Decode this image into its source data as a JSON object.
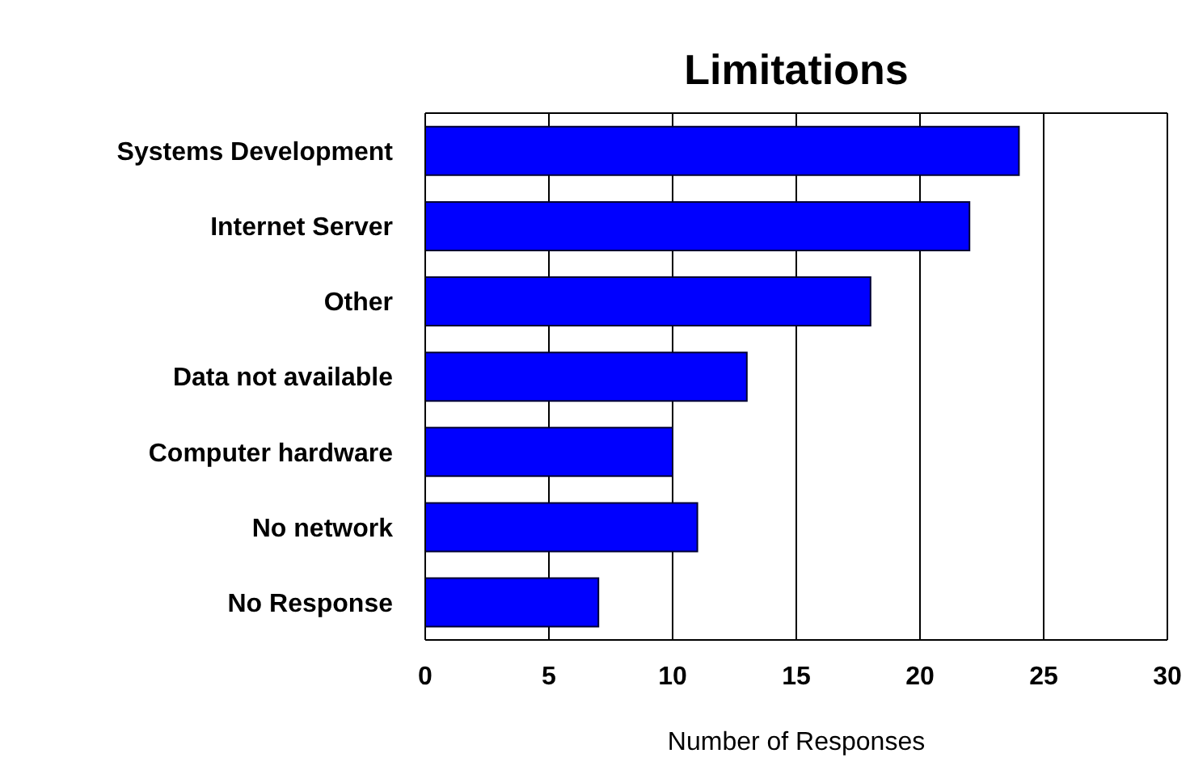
{
  "chart_data": {
    "type": "bar",
    "orientation": "horizontal",
    "title": "Limitations",
    "xlabel": "Number of Responses",
    "categories": [
      "Systems Development",
      "Internet Server",
      "Other",
      "Data not available",
      "Computer hardware",
      "No network",
      "No Response"
    ],
    "values": [
      24,
      22,
      18,
      13,
      10,
      11,
      7
    ],
    "color": "#0000ff",
    "xlim": [
      0,
      30
    ],
    "xticks": [
      0,
      5,
      10,
      15,
      20,
      25,
      30
    ],
    "grid": "x"
  }
}
